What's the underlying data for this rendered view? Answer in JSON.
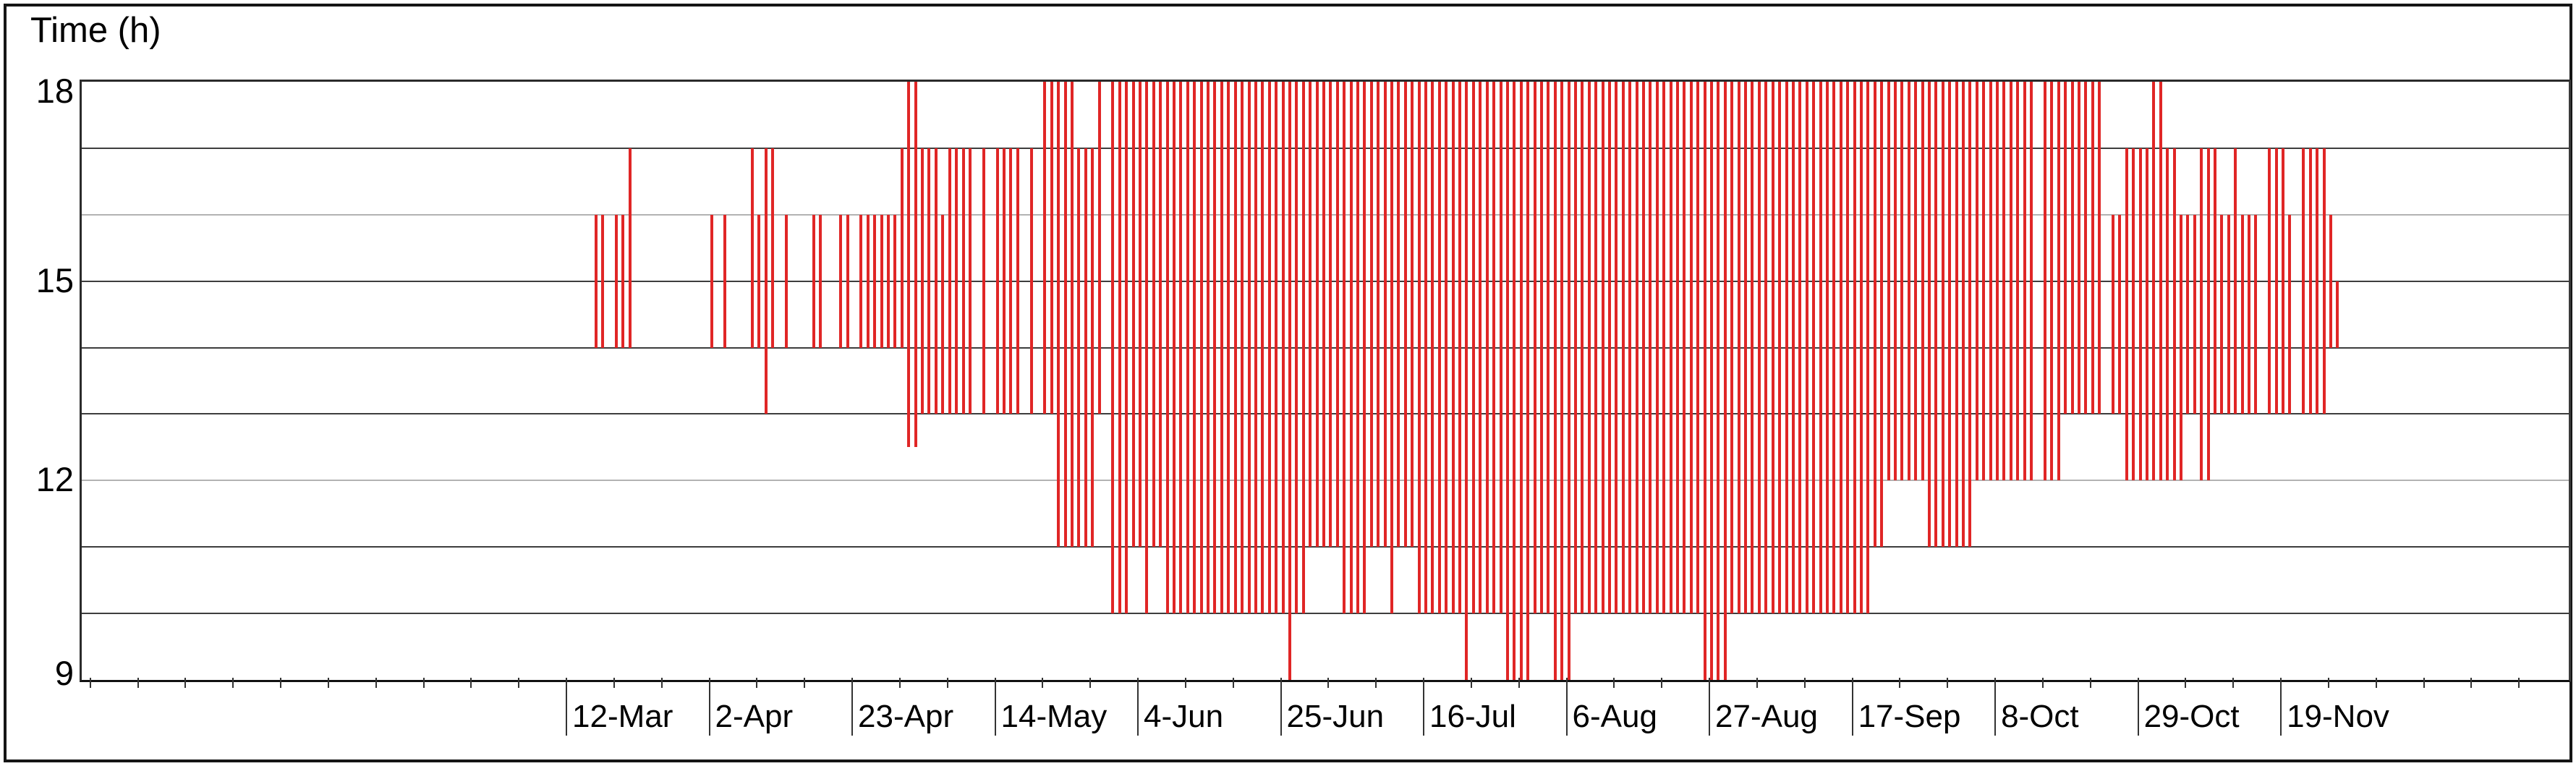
{
  "chart_data": {
    "type": "bar",
    "variant": "daily-vertical-range-bars",
    "title": "Time (h)",
    "ylabel": "Time (h)",
    "xlabel": "",
    "ylim": [
      9,
      18
    ],
    "y_labeled_ticks": [
      "18",
      "15",
      "12",
      "9"
    ],
    "y_labeled_values": [
      18,
      15,
      12,
      9
    ],
    "y_gridlines": [
      17,
      16,
      15,
      14,
      13,
      12,
      11,
      10
    ],
    "y_light_gridlines": [
      16,
      12
    ],
    "grid": "horizontal-only",
    "legend": "none",
    "bar_color": "#e02626",
    "x_axis": {
      "unit": "day-of-year",
      "domain_days": [
        0,
        365
      ],
      "major_tick_interval_days": 21,
      "minor_tick_interval_days": 7,
      "tick_days": [
        71,
        92,
        113,
        134,
        155,
        176,
        197,
        218,
        239,
        260,
        281,
        302,
        323
      ],
      "tick_labels": [
        "12-Mar",
        "2-Apr",
        "23-Apr",
        "14-May",
        "4-Jun",
        "25-Jun",
        "16-Jul",
        "6-Aug",
        "27-Aug",
        "17-Sep",
        "8-Oct",
        "29-Oct",
        "19-Nov"
      ]
    },
    "bars_format": "[day_of_year, start_hour, end_hour]",
    "bars": [
      [
        75,
        14,
        16
      ],
      [
        76,
        14,
        16
      ],
      [
        78,
        14,
        16
      ],
      [
        79,
        14,
        16
      ],
      [
        80,
        14,
        17
      ],
      [
        92,
        14,
        16
      ],
      [
        94,
        14,
        16
      ],
      [
        98,
        14,
        17
      ],
      [
        99,
        14,
        16
      ],
      [
        100,
        13,
        17
      ],
      [
        101,
        14,
        17
      ],
      [
        103,
        14,
        16
      ],
      [
        107,
        14,
        16
      ],
      [
        108,
        14,
        16
      ],
      [
        111,
        14,
        16
      ],
      [
        112,
        14,
        16
      ],
      [
        114,
        14,
        16
      ],
      [
        115,
        14,
        16
      ],
      [
        116,
        14,
        16
      ],
      [
        117,
        14,
        16
      ],
      [
        118,
        14,
        16
      ],
      [
        119,
        14,
        16
      ],
      [
        120,
        14,
        17
      ],
      [
        121,
        12.5,
        18
      ],
      [
        122,
        12.5,
        18
      ],
      [
        123,
        13,
        17
      ],
      [
        124,
        13,
        17
      ],
      [
        125,
        13,
        17
      ],
      [
        126,
        13,
        16
      ],
      [
        127,
        13,
        17
      ],
      [
        128,
        13,
        17
      ],
      [
        129,
        13,
        17
      ],
      [
        130,
        13,
        17
      ],
      [
        132,
        13,
        17
      ],
      [
        134,
        13,
        17
      ],
      [
        135,
        13,
        17
      ],
      [
        136,
        13,
        17
      ],
      [
        137,
        13,
        17
      ],
      [
        139,
        13,
        17
      ],
      [
        141,
        13,
        18
      ],
      [
        142,
        13,
        18
      ],
      [
        143,
        11,
        18
      ],
      [
        144,
        11,
        18
      ],
      [
        145,
        11,
        18
      ],
      [
        146,
        11,
        17
      ],
      [
        147,
        11,
        17
      ],
      [
        148,
        11,
        17
      ],
      [
        149,
        13,
        18
      ],
      [
        151,
        10,
        18
      ],
      [
        152,
        10,
        18
      ],
      [
        153,
        10,
        18
      ],
      [
        154,
        11,
        18
      ],
      [
        155,
        11,
        18
      ],
      [
        156,
        10,
        18
      ],
      [
        157,
        11,
        18
      ],
      [
        158,
        11,
        18
      ],
      [
        159,
        10,
        18
      ],
      [
        160,
        10,
        18
      ],
      [
        161,
        10,
        18
      ],
      [
        162,
        10,
        18
      ],
      [
        163,
        10,
        18
      ],
      [
        164,
        10,
        18
      ],
      [
        165,
        10,
        18
      ],
      [
        166,
        10,
        18
      ],
      [
        167,
        10,
        18
      ],
      [
        168,
        10,
        18
      ],
      [
        169,
        10,
        18
      ],
      [
        170,
        10,
        18
      ],
      [
        171,
        10,
        18
      ],
      [
        172,
        10,
        18
      ],
      [
        173,
        10,
        18
      ],
      [
        174,
        10,
        18
      ],
      [
        175,
        10,
        18
      ],
      [
        176,
        10,
        18
      ],
      [
        177,
        9,
        18
      ],
      [
        178,
        10,
        18
      ],
      [
        179,
        10,
        18
      ],
      [
        180,
        11,
        18
      ],
      [
        181,
        11,
        18
      ],
      [
        182,
        11,
        18
      ],
      [
        183,
        11,
        18
      ],
      [
        184,
        11,
        18
      ],
      [
        185,
        10,
        18
      ],
      [
        186,
        10,
        18
      ],
      [
        187,
        10,
        18
      ],
      [
        188,
        10,
        18
      ],
      [
        189,
        11,
        18
      ],
      [
        190,
        11,
        18
      ],
      [
        191,
        11,
        18
      ],
      [
        192,
        10,
        18
      ],
      [
        193,
        11,
        18
      ],
      [
        194,
        11,
        18
      ],
      [
        195,
        11,
        18
      ],
      [
        196,
        10,
        18
      ],
      [
        197,
        10,
        18
      ],
      [
        198,
        10,
        18
      ],
      [
        199,
        10,
        18
      ],
      [
        200,
        10,
        18
      ],
      [
        201,
        10,
        18
      ],
      [
        202,
        10,
        18
      ],
      [
        203,
        9,
        18
      ],
      [
        204,
        10,
        18
      ],
      [
        205,
        10,
        18
      ],
      [
        206,
        10,
        18
      ],
      [
        207,
        10,
        18
      ],
      [
        208,
        10,
        18
      ],
      [
        209,
        9,
        18
      ],
      [
        210,
        9,
        18
      ],
      [
        211,
        9,
        18
      ],
      [
        212,
        9,
        18
      ],
      [
        213,
        10,
        18
      ],
      [
        214,
        10,
        18
      ],
      [
        215,
        10,
        18
      ],
      [
        216,
        9,
        18
      ],
      [
        217,
        9,
        18
      ],
      [
        218,
        9,
        18
      ],
      [
        219,
        10,
        18
      ],
      [
        220,
        10,
        18
      ],
      [
        221,
        10,
        18
      ],
      [
        222,
        10,
        18
      ],
      [
        223,
        10,
        18
      ],
      [
        224,
        10,
        18
      ],
      [
        225,
        10,
        18
      ],
      [
        226,
        10,
        18
      ],
      [
        227,
        10,
        18
      ],
      [
        228,
        10,
        18
      ],
      [
        229,
        10,
        18
      ],
      [
        230,
        10,
        18
      ],
      [
        231,
        10,
        18
      ],
      [
        232,
        10,
        18
      ],
      [
        233,
        10,
        18
      ],
      [
        234,
        10,
        18
      ],
      [
        235,
        10,
        18
      ],
      [
        236,
        10,
        18
      ],
      [
        237,
        10,
        18
      ],
      [
        238,
        9,
        18
      ],
      [
        239,
        9,
        18
      ],
      [
        240,
        9,
        18
      ],
      [
        241,
        9,
        18
      ],
      [
        242,
        10,
        18
      ],
      [
        243,
        10,
        18
      ],
      [
        244,
        10,
        18
      ],
      [
        245,
        10,
        18
      ],
      [
        246,
        10,
        18
      ],
      [
        247,
        10,
        18
      ],
      [
        248,
        10,
        18
      ],
      [
        249,
        10,
        18
      ],
      [
        250,
        10,
        18
      ],
      [
        251,
        10,
        18
      ],
      [
        252,
        10,
        18
      ],
      [
        253,
        10,
        18
      ],
      [
        254,
        10,
        18
      ],
      [
        255,
        10,
        18
      ],
      [
        256,
        10,
        18
      ],
      [
        257,
        10,
        18
      ],
      [
        258,
        10,
        18
      ],
      [
        259,
        10,
        18
      ],
      [
        260,
        10,
        18
      ],
      [
        261,
        10,
        18
      ],
      [
        262,
        10,
        18
      ],
      [
        263,
        11,
        18
      ],
      [
        264,
        11,
        18
      ],
      [
        265,
        12,
        18
      ],
      [
        266,
        12,
        18
      ],
      [
        267,
        12,
        18
      ],
      [
        268,
        12,
        18
      ],
      [
        269,
        12,
        18
      ],
      [
        270,
        12,
        18
      ],
      [
        271,
        11,
        18
      ],
      [
        272,
        11,
        18
      ],
      [
        273,
        11,
        18
      ],
      [
        274,
        11,
        18
      ],
      [
        275,
        11,
        18
      ],
      [
        276,
        11,
        18
      ],
      [
        277,
        11,
        18
      ],
      [
        278,
        12,
        18
      ],
      [
        279,
        12,
        18
      ],
      [
        280,
        12,
        18
      ],
      [
        281,
        12,
        18
      ],
      [
        282,
        12,
        18
      ],
      [
        283,
        12,
        18
      ],
      [
        284,
        12,
        18
      ],
      [
        285,
        12,
        18
      ],
      [
        286,
        12,
        18
      ],
      [
        288,
        12,
        18
      ],
      [
        289,
        12,
        18
      ],
      [
        290,
        12,
        18
      ],
      [
        291,
        13,
        18
      ],
      [
        292,
        13,
        18
      ],
      [
        293,
        13,
        18
      ],
      [
        294,
        13,
        18
      ],
      [
        295,
        13,
        18
      ],
      [
        296,
        13,
        18
      ],
      [
        298,
        13,
        16
      ],
      [
        299,
        13,
        16
      ],
      [
        300,
        12,
        17
      ],
      [
        301,
        12,
        17
      ],
      [
        302,
        12,
        17
      ],
      [
        303,
        12,
        17
      ],
      [
        304,
        12,
        18
      ],
      [
        305,
        12,
        18
      ],
      [
        306,
        12,
        17
      ],
      [
        307,
        12,
        17
      ],
      [
        308,
        12,
        16
      ],
      [
        309,
        13,
        16
      ],
      [
        310,
        13,
        16
      ],
      [
        311,
        12,
        17
      ],
      [
        312,
        12,
        17
      ],
      [
        313,
        13,
        17
      ],
      [
        314,
        13,
        16
      ],
      [
        315,
        13,
        16
      ],
      [
        316,
        13,
        17
      ],
      [
        317,
        13,
        16
      ],
      [
        318,
        13,
        16
      ],
      [
        319,
        13,
        16
      ],
      [
        321,
        13,
        17
      ],
      [
        322,
        13,
        17
      ],
      [
        323,
        13,
        17
      ],
      [
        324,
        13,
        16
      ],
      [
        326,
        13,
        17
      ],
      [
        327,
        13,
        17
      ],
      [
        328,
        13,
        17
      ],
      [
        329,
        13,
        17
      ],
      [
        330,
        14,
        16
      ],
      [
        331,
        14,
        15
      ]
    ]
  }
}
